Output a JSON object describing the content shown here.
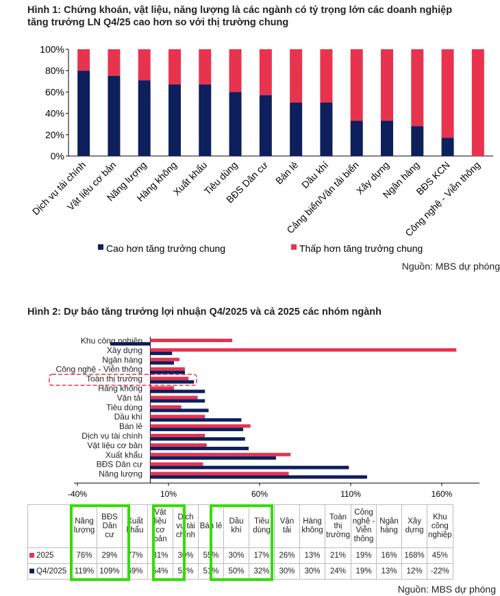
{
  "figure1": {
    "title_line1": "Hình 1: Chứng khoán, vật liệu, năng lượng là các ngành có tỷ trọng lớn các doanh nghiệp",
    "title_line2": "tăng trưởng LN Q4/25 cao hơn so với thị trường chung",
    "source": "Nguồn: MBS dự phóng"
  },
  "figure2": {
    "title": "Hình 2: Dự báo tăng trưởng lợi nhuận Q4/2025 và cả 2025 các nhóm ngành",
    "source": "Nguồn: MBS dự phóng"
  },
  "colors": {
    "blue": "#0d1f5c",
    "red": "#e8334f",
    "green": "#33dd00"
  },
  "chart_data": [
    {
      "type": "bar",
      "stacked": true,
      "title": "",
      "ylim": [
        0,
        100
      ],
      "yticks": [
        "0%",
        "20%",
        "40%",
        "60%",
        "80%",
        "100%"
      ],
      "categories": [
        "Dịch vụ tài chính",
        "Vật liệu cơ bản",
        "Năng lượng",
        "Hàng không",
        "Xuất khẩu",
        "Tiêu dùng",
        "BĐS Dân cư",
        "Bán lẻ",
        "Dầu khí",
        "Cảng biển/Vận tải biển",
        "Xây dựng",
        "Ngân hàng",
        "BĐS KCN",
        "Công nghệ - Viễn thông"
      ],
      "series": [
        {
          "name": "Cao hơn tăng trưởng chung",
          "values": [
            80,
            75,
            71,
            67,
            67,
            60,
            57,
            50,
            50,
            33,
            33,
            28,
            17,
            0
          ]
        },
        {
          "name": "Thấp hơn tăng trưởng chung",
          "values": [
            20,
            25,
            29,
            33,
            33,
            40,
            43,
            50,
            50,
            67,
            67,
            72,
            83,
            100
          ]
        }
      ],
      "legend": "bottom"
    },
    {
      "type": "bar",
      "orientation": "horizontal",
      "xlim": [
        -40,
        181
      ],
      "xticks": [
        "-40%",
        "10%",
        "60%",
        "110%",
        "160%"
      ],
      "categories": [
        "Khu công nghiệp",
        "Xây dựng",
        "Ngân hàng",
        "Công nghệ - Viễn thông",
        "Toàn thị trường",
        "Hàng không",
        "Vận tải",
        "Tiêu dùng",
        "Dầu khí",
        "Bán lẻ",
        "Dịch vụ tài chính",
        "Vật liệu cơ bản",
        "Xuất khẩu",
        "BĐS Dân cư",
        "Năng lượng"
      ],
      "highlight": "Toàn thị trường",
      "series": [
        {
          "name": "2025",
          "values": [
            45,
            168,
            16,
            19,
            21,
            13,
            26,
            17,
            30,
            55,
            30,
            31,
            77,
            29,
            76
          ]
        },
        {
          "name": "Q4/2025",
          "values": [
            -22,
            12,
            13,
            19,
            24,
            30,
            30,
            32,
            50,
            51,
            52,
            54,
            69,
            109,
            119
          ]
        }
      ]
    }
  ],
  "table": {
    "headers": [
      "Năng lượng",
      "BĐS Dân cư",
      "Xuất khẩu",
      "Vật liệu cơ bản",
      "Dịch vụ tài chính",
      "Bán lẻ",
      "Dầu khí",
      "Tiêu dùng",
      "Vận tải",
      "Hàng không",
      "Toàn thị trường",
      "Công nghệ - Viễn thông",
      "Ngân hàng",
      "Xây dựng",
      "Khu công nghiệp"
    ],
    "rows": [
      {
        "label": "2025",
        "values": [
          "76%",
          "29%",
          "77%",
          "31%",
          "30%",
          "55%",
          "30%",
          "17%",
          "26%",
          "13%",
          "21%",
          "19%",
          "16%",
          "168%",
          "45%"
        ]
      },
      {
        "label": "Q4/2025",
        "values": [
          "119%",
          "109%",
          "69%",
          "54%",
          "52%",
          "51%",
          "50%",
          "32%",
          "30%",
          "30%",
          "24%",
          "19%",
          "13%",
          "12%",
          "-22%"
        ]
      }
    ]
  }
}
